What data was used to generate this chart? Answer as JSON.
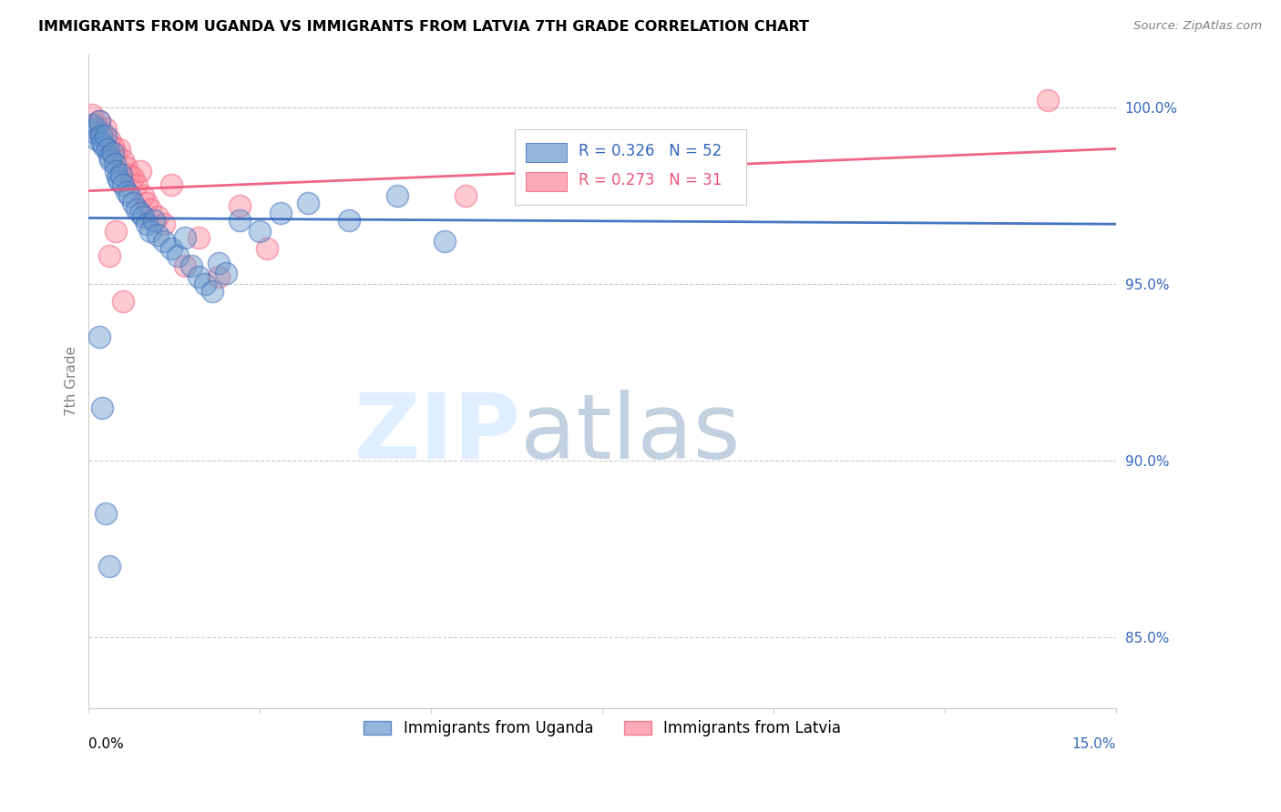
{
  "title": "IMMIGRANTS FROM UGANDA VS IMMIGRANTS FROM LATVIA 7TH GRADE CORRELATION CHART",
  "source": "Source: ZipAtlas.com",
  "ylabel": "7th Grade",
  "xlim": [
    0.0,
    15.0
  ],
  "ylim": [
    83.0,
    101.5
  ],
  "uganda_R": 0.326,
  "uganda_N": 52,
  "latvia_R": 0.273,
  "latvia_N": 31,
  "uganda_color": "#6699CC",
  "latvia_color": "#FF8899",
  "uganda_line_color": "#3366BB",
  "latvia_line_color": "#EE5577",
  "legend_label_uganda": "Immigrants from Uganda",
  "legend_label_latvia": "Immigrants from Latvia",
  "uganda_scatter_x": [
    0.05,
    0.08,
    0.1,
    0.12,
    0.15,
    0.18,
    0.2,
    0.22,
    0.25,
    0.28,
    0.3,
    0.32,
    0.35,
    0.38,
    0.4,
    0.42,
    0.45,
    0.48,
    0.5,
    0.55,
    0.6,
    0.65,
    0.7,
    0.75,
    0.8,
    0.85,
    0.9,
    0.95,
    1.0,
    1.1,
    1.2,
    1.3,
    1.4,
    1.5,
    1.6,
    1.7,
    1.8,
    1.9,
    2.0,
    2.2,
    2.5,
    2.8,
    3.2,
    3.8,
    4.5,
    5.2,
    6.5,
    7.8,
    0.15,
    0.2,
    0.25,
    0.3
  ],
  "uganda_scatter_y": [
    99.5,
    99.3,
    99.4,
    99.1,
    99.6,
    99.2,
    99.0,
    98.9,
    99.2,
    98.8,
    98.6,
    98.5,
    98.7,
    98.4,
    98.2,
    98.0,
    97.9,
    98.1,
    97.8,
    97.6,
    97.5,
    97.3,
    97.1,
    97.0,
    96.9,
    96.7,
    96.5,
    96.8,
    96.4,
    96.2,
    96.0,
    95.8,
    96.3,
    95.5,
    95.2,
    95.0,
    94.8,
    95.6,
    95.3,
    96.8,
    96.5,
    97.0,
    97.3,
    96.8,
    97.5,
    96.2,
    97.8,
    98.2,
    93.5,
    91.5,
    88.5,
    87.0
  ],
  "latvia_scatter_x": [
    0.05,
    0.1,
    0.15,
    0.2,
    0.25,
    0.3,
    0.35,
    0.4,
    0.45,
    0.5,
    0.55,
    0.6,
    0.65,
    0.7,
    0.75,
    0.8,
    0.85,
    0.9,
    1.0,
    1.1,
    1.2,
    1.4,
    1.6,
    1.9,
    2.2,
    2.6,
    0.3,
    0.4,
    0.5,
    5.5,
    14.0
  ],
  "latvia_scatter_y": [
    99.8,
    99.5,
    99.6,
    99.3,
    99.4,
    99.1,
    98.9,
    98.7,
    98.8,
    98.5,
    98.3,
    98.1,
    98.0,
    97.8,
    98.2,
    97.5,
    97.3,
    97.1,
    96.9,
    96.7,
    97.8,
    95.5,
    96.3,
    95.2,
    97.2,
    96.0,
    95.8,
    96.5,
    94.5,
    97.5,
    100.2
  ],
  "y_tick_positions": [
    85.0,
    90.0,
    95.0,
    100.0
  ],
  "y_tick_labels": [
    "85.0%",
    "90.0%",
    "95.0%",
    "100.0%"
  ]
}
